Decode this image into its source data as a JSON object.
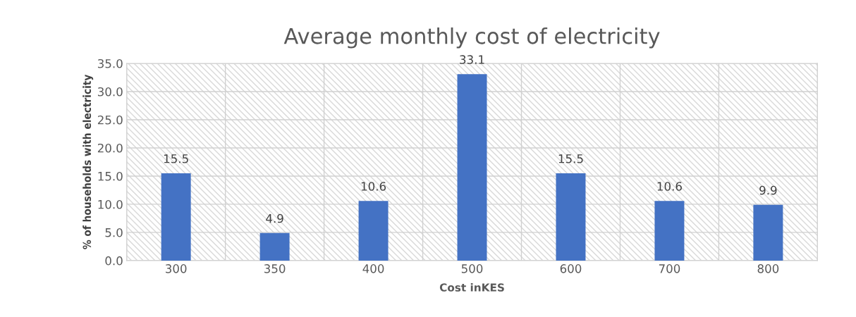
{
  "chart_data": {
    "type": "bar",
    "title": "Average monthly cost of electricity",
    "xlabel": "Cost inKES",
    "ylabel": "% of households with electricity",
    "categories": [
      "300",
      "350",
      "400",
      "500",
      "600",
      "700",
      "800"
    ],
    "values": [
      15.5,
      4.9,
      10.6,
      33.1,
      15.5,
      10.6,
      9.9
    ],
    "color": "#4472c4",
    "ylim": [
      0,
      35
    ],
    "yticks": [
      {
        "value": 0,
        "label": "0.0"
      },
      {
        "value": 5,
        "label": "5.0"
      },
      {
        "value": 10,
        "label": "10.0"
      },
      {
        "value": 15,
        "label": "15.0"
      },
      {
        "value": 20,
        "label": "20.0"
      },
      {
        "value": 25,
        "label": "25.0"
      },
      {
        "value": 30,
        "label": "30.0"
      },
      {
        "value": 35,
        "label": "35.0"
      }
    ],
    "grid": true,
    "data_labels": true
  }
}
